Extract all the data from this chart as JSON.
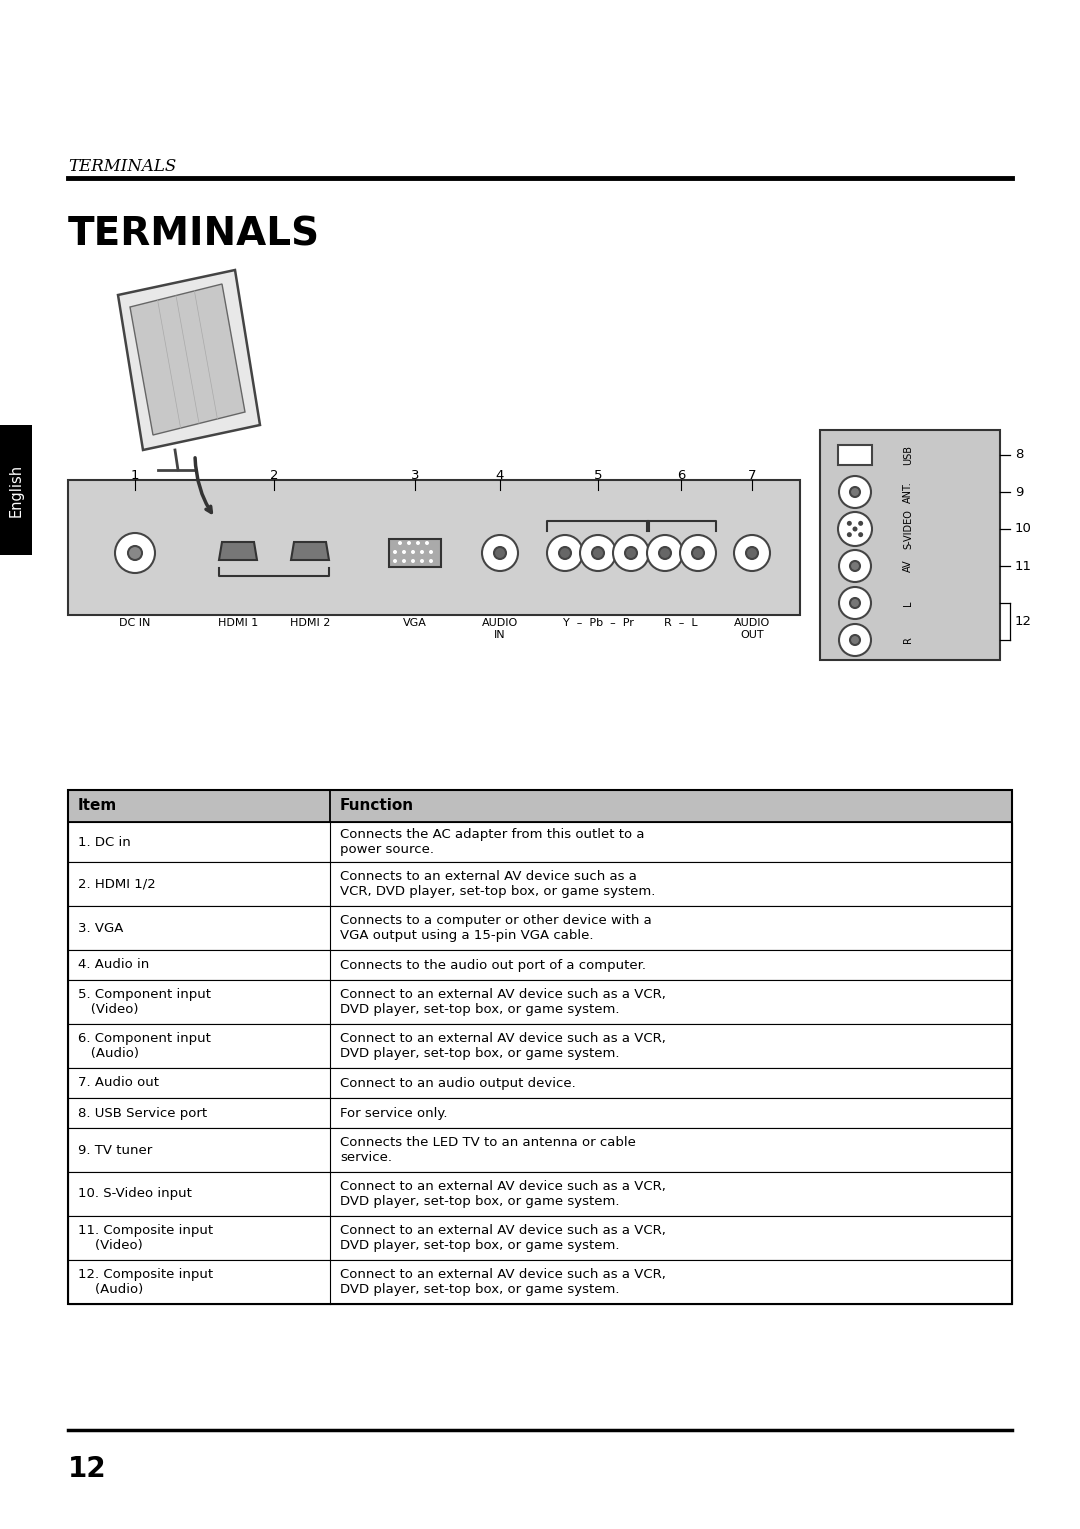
{
  "bg_color": "#ffffff",
  "header_italic_title": "TERMINALS",
  "main_title": "TERMINALS",
  "english_tab_text": "English",
  "page_number": "12",
  "table_header": [
    "Item",
    "Function"
  ],
  "table_rows": [
    [
      "1. DC in",
      "Connects the AC adapter from this outlet to a\npower source."
    ],
    [
      "2. HDMI 1/2",
      "Connects to an external AV device such as a\nVCR, DVD player, set-top box, or game system."
    ],
    [
      "3. VGA",
      "Connects to a computer or other device with a\nVGA output using a 15-pin VGA cable."
    ],
    [
      "4. Audio in",
      "Connects to the audio out port of a computer."
    ],
    [
      "5. Component input\n   (Video)",
      "Connect to an external AV device such as a VCR,\nDVD player, set-top box, or game system."
    ],
    [
      "6. Component input\n   (Audio)",
      "Connect to an external AV device such as a VCR,\nDVD player, set-top box, or game system."
    ],
    [
      "7. Audio out",
      "Connect to an audio output device."
    ],
    [
      "8. USB Service port",
      "For service only."
    ],
    [
      "9. TV tuner",
      "Connects the LED TV to an antenna or cable\nservice."
    ],
    [
      "10. S-Video input",
      "Connect to an external AV device such as a VCR,\nDVD player, set-top box, or game system."
    ],
    [
      "11. Composite input\n    (Video)",
      "Connect to an external AV device such as a VCR,\nDVD player, set-top box, or game system."
    ],
    [
      "12. Composite input\n    (Audio)",
      "Connect to an external AV device such as a VCR,\nDVD player, set-top box, or game system."
    ]
  ],
  "table_header_bg": "#bebebe",
  "table_border_color": "#000000",
  "panel_color": "#d0d0d0",
  "side_panel_color": "#c8c8c8"
}
